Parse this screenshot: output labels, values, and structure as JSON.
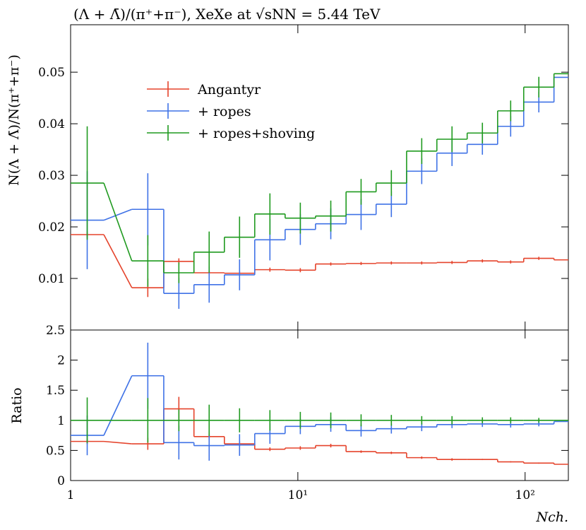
{
  "chart_data": [
    {
      "type": "histogram",
      "title": "(Λ + Λ̄)/(π⁺+π⁻), XeXe at √sNN = 5.44 TeV",
      "y_label": "N(Λ + Λ̄)/N(π⁺+π⁻)",
      "bins": [
        1,
        1.4,
        1.86,
        2.57,
        3.49,
        4.75,
        6.46,
        8.79,
        11.96,
        16.3,
        22.1,
        30.1,
        40.9,
        55.6,
        75.7,
        98.6,
        134,
        155
      ],
      "xlim": [
        1,
        155
      ],
      "log_x": true,
      "ylim": [
        0,
        0.0592
      ],
      "yticks": [
        0.01,
        0.02,
        0.03,
        0.04,
        0.05
      ],
      "legend": "upper left",
      "series": [
        {
          "name": "Angantyr",
          "color": "#e5432b",
          "values": [
            0.0185,
            null,
            0.0082,
            0.0133,
            0.0111,
            0.011,
            0.0117,
            0.0116,
            0.0128,
            0.0129,
            0.013,
            0.013,
            0.0131,
            0.0134,
            0.0132,
            0.0139,
            0.0136
          ],
          "errors": [
            0.0006,
            null,
            0.0018,
            0.0006,
            0.0004,
            0.0004,
            0.0004,
            0.0004,
            0.0003,
            0.0003,
            0.0003,
            0.0003,
            0.0003,
            0.0003,
            0.0003,
            0.0003,
            null
          ]
        },
        {
          "name": "+ ropes",
          "color": "#3f72e6",
          "values": [
            0.0213,
            null,
            0.0234,
            0.0071,
            0.0088,
            0.0107,
            0.0175,
            0.0195,
            0.0206,
            0.0224,
            0.0244,
            0.0308,
            0.0343,
            0.036,
            0.0395,
            0.0442,
            0.049
          ],
          "errors": [
            0.0095,
            null,
            0.007,
            0.003,
            0.0035,
            0.003,
            0.004,
            0.003,
            0.003,
            0.003,
            0.0025,
            0.0025,
            0.0025,
            0.002,
            0.002,
            0.002,
            null
          ]
        },
        {
          "name": "+ ropes+shoving",
          "color": "#1f9a1f",
          "values": [
            0.0285,
            null,
            0.0134,
            0.0111,
            0.0151,
            0.018,
            0.0225,
            0.0217,
            0.0221,
            0.0268,
            0.0285,
            0.0347,
            0.037,
            0.0382,
            0.0425,
            0.0471,
            0.0497
          ],
          "errors": [
            0.011,
            null,
            0.005,
            0.002,
            0.004,
            0.004,
            0.004,
            0.003,
            0.003,
            0.0025,
            0.0025,
            0.0025,
            0.0025,
            0.002,
            0.002,
            0.002,
            null
          ]
        }
      ]
    },
    {
      "type": "histogram",
      "y_label": "Ratio",
      "x_label": "Nch.",
      "bins": [
        1,
        1.4,
        1.86,
        2.57,
        3.49,
        4.75,
        6.46,
        8.79,
        11.96,
        16.3,
        22.1,
        30.1,
        40.9,
        55.6,
        75.7,
        98.6,
        134,
        155
      ],
      "xlim": [
        1,
        155
      ],
      "log_x": true,
      "xticks": [
        1,
        {
          "value": 10,
          "label": "10¹"
        },
        {
          "value": 100,
          "label": "10²"
        }
      ],
      "ylim": [
        0,
        2.5
      ],
      "yticks": [
        0,
        0.5,
        1,
        1.5,
        2,
        2.5
      ],
      "series": [
        {
          "color": "#e5432b",
          "values": [
            0.65,
            null,
            0.61,
            1.19,
            0.73,
            0.61,
            0.52,
            0.54,
            0.58,
            0.48,
            0.46,
            0.38,
            0.35,
            0.35,
            0.31,
            0.29,
            0.27
          ],
          "errors": [
            0.05,
            null,
            0.1,
            0.2,
            0.05,
            0.04,
            0.03,
            0.03,
            0.03,
            0.02,
            0.02,
            0.02,
            0.02,
            0.01,
            0.01,
            0.01,
            null
          ]
        },
        {
          "color": "#3f72e6",
          "values": [
            0.75,
            null,
            1.74,
            0.63,
            0.58,
            0.59,
            0.78,
            0.9,
            0.93,
            0.83,
            0.86,
            0.89,
            0.93,
            0.94,
            0.93,
            0.94,
            0.98
          ],
          "errors": [
            0.33,
            null,
            0.55,
            0.28,
            0.25,
            0.18,
            0.17,
            0.13,
            0.12,
            0.1,
            0.08,
            0.07,
            0.06,
            0.05,
            0.05,
            0.04,
            null
          ]
        },
        {
          "color": "#1f9a1f",
          "values": [
            1,
            null,
            1,
            1,
            1,
            1,
            1,
            1,
            1,
            1,
            1,
            1,
            1,
            1,
            1,
            1,
            1
          ],
          "errors": [
            0.38,
            null,
            0.37,
            0.18,
            0.26,
            0.2,
            0.17,
            0.14,
            0.13,
            0.1,
            0.09,
            0.07,
            0.07,
            0.05,
            0.05,
            0.04,
            null
          ]
        }
      ]
    }
  ]
}
